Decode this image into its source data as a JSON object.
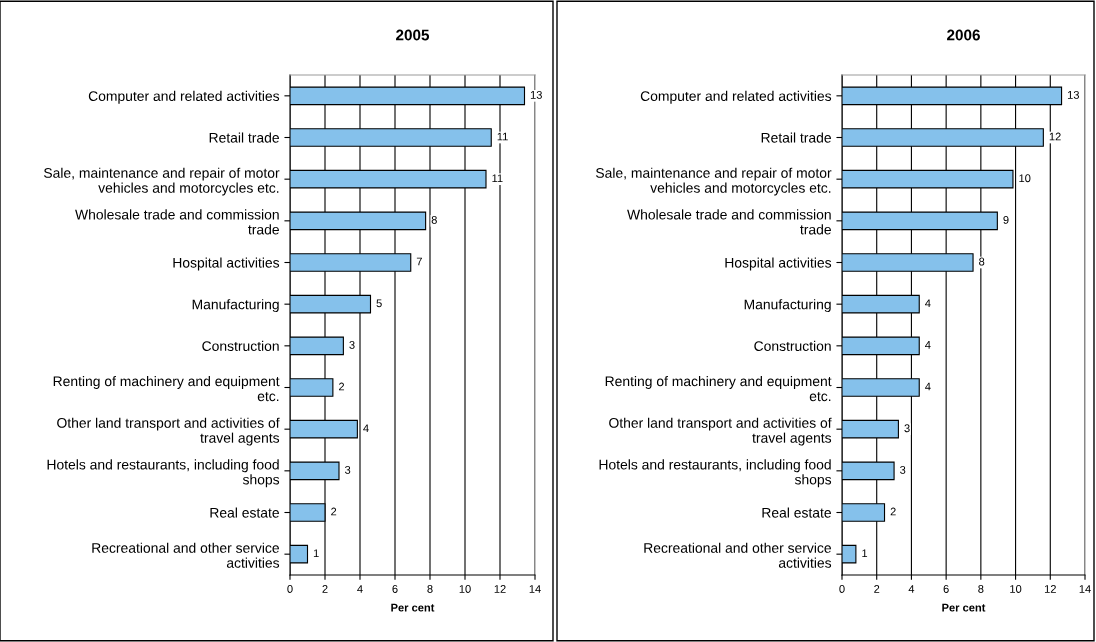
{
  "chart_data": [
    {
      "type": "bar",
      "orientation": "horizontal",
      "title": "2005",
      "xlabel": "Per cent",
      "categories": [
        "Computer and related activities",
        "Retail trade",
        "Sale, maintenance and repair of motor\nvehicles and motorcycles etc.",
        "Wholesale trade and commission\ntrade",
        "Hospital activities",
        "Manufacturing",
        "Construction",
        "Renting of machinery and equipment\netc.",
        "Other land transport and activities of\ntravel agents",
        "Hotels and restaurants, including food\nshops",
        "Real estate",
        "Recreational and other service\nactivities"
      ],
      "values": [
        13.4,
        11.5,
        11.2,
        7.75,
        6.9,
        4.6,
        3.05,
        2.45,
        3.85,
        2.8,
        2.0,
        1.0
      ],
      "value_labels": [
        "13",
        "11",
        "11",
        "8",
        "7",
        "5",
        "3",
        "2",
        "4",
        "3",
        "2",
        "1"
      ],
      "color": "#85c1eb",
      "xlim": [
        0,
        14
      ],
      "xticks": [
        0,
        2,
        4,
        6,
        8,
        10,
        12,
        14
      ],
      "grid": "x"
    },
    {
      "type": "bar",
      "orientation": "horizontal",
      "title": "2006",
      "xlabel": "Per cent",
      "categories": [
        "Computer and related activities",
        "Retail trade",
        "Sale, maintenance and repair of motor\nvehicles and motorcycles etc.",
        "Wholesale trade and commission\ntrade",
        "Hospital activities",
        "Manufacturing",
        "Construction",
        "Renting of machinery and equipment\netc.",
        "Other land transport and activities of\ntravel agents",
        "Hotels and restaurants, including food\nshops",
        "Real estate",
        "Recreational and other service\nactivities"
      ],
      "values": [
        12.65,
        11.6,
        9.85,
        8.95,
        7.55,
        4.45,
        4.45,
        4.45,
        3.25,
        3.0,
        2.45,
        0.8
      ],
      "value_labels": [
        "13",
        "12",
        "10",
        "9",
        "8",
        "4",
        "4",
        "4",
        "3",
        "3",
        "2",
        "1"
      ],
      "color": "#85c1eb",
      "xlim": [
        0,
        14
      ],
      "xticks": [
        0,
        2,
        4,
        6,
        8,
        10,
        12,
        14
      ],
      "grid": "x"
    }
  ]
}
